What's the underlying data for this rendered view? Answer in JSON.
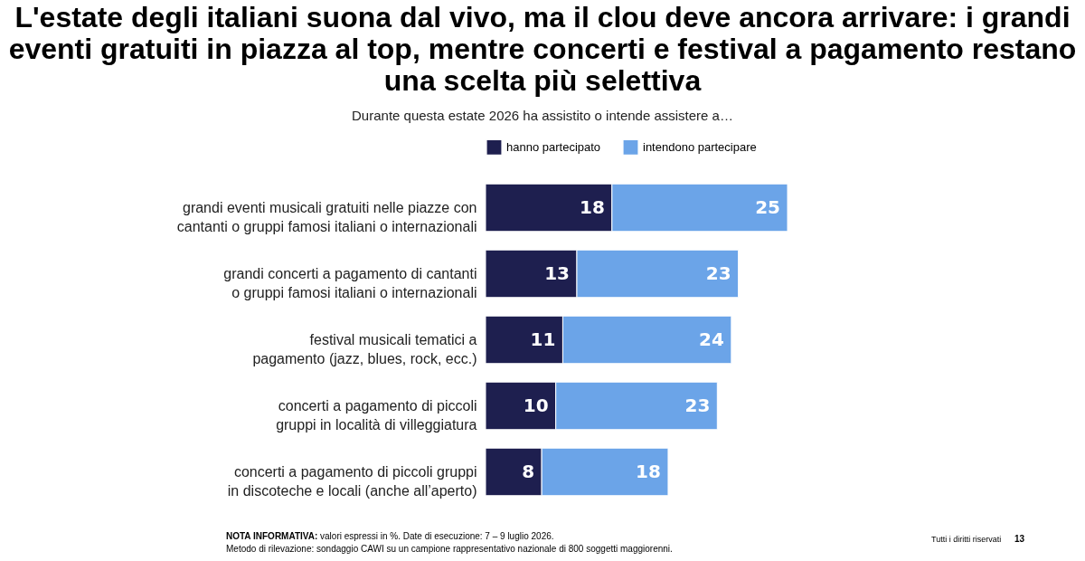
{
  "chart_data": {
    "type": "bar",
    "orientation": "horizontal",
    "stacked": true,
    "title": "L'estate degli italiani suona dal vivo, ma il clou deve ancora arrivare: i grandi eventi gratuiti in piazza al top, mentre concerti e festival a pagamento restano una scelta più selettiva",
    "subtitle": "Durante questa estate 2026 ha assistito o intende assistere a…",
    "categories": [
      "grandi eventi musicali gratuiti nelle piazze con cantanti o gruppi famosi italiani o internazionali",
      "grandi concerti a pagamento di cantanti o gruppi famosi italiani o internazionali",
      "festival musicali tematici a pagamento (jazz, blues, rock, ecc.)",
      "concerti a pagamento di piccoli gruppi in località di villeggiatura",
      "concerti a pagamento di piccoli gruppi in discoteche e locali (anche all’aperto)"
    ],
    "series": [
      {
        "name": "hanno partecipato",
        "color": "#1e1f4f",
        "values": [
          18,
          13,
          11,
          10,
          8
        ]
      },
      {
        "name": "intendono partecipare",
        "color": "#6ba4e8",
        "values": [
          25,
          23,
          24,
          23,
          18
        ]
      }
    ],
    "data_labels": true,
    "legend": "top",
    "tick_labels": "y",
    "annotations": [
      "NOTA INFORMATIVA: valori espressi in %. Date di esecuzione: 7 – 9 luglio 2026.",
      "Metodo di rilevazione: sondaggio CAWI su un campione rappresentativo nazionale di 800 soggetti maggiorenni.",
      "Tutti i diritti riservati",
      "13"
    ]
  }
}
